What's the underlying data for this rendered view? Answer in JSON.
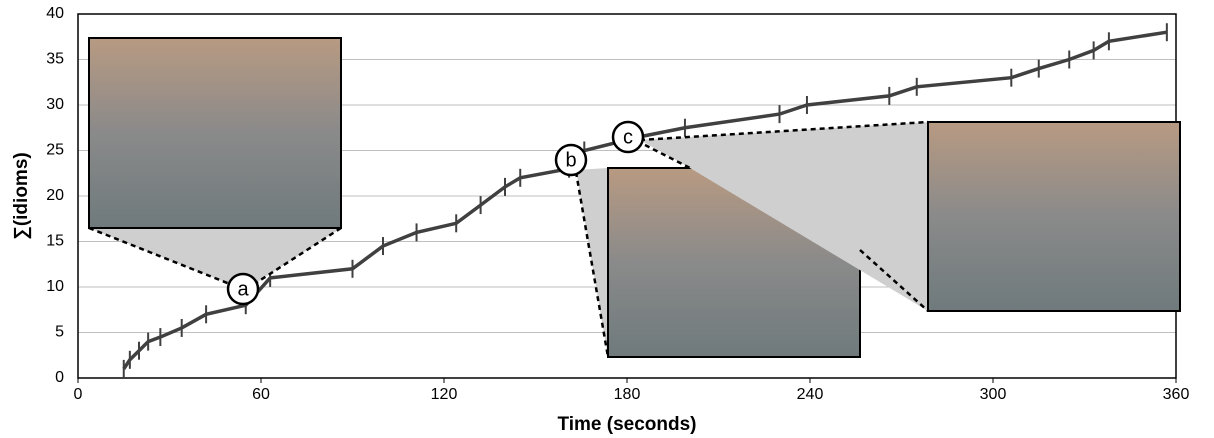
{
  "chart_data": {
    "type": "line",
    "xlabel": "Time (seconds)",
    "ylabel": "∑(idioms)",
    "x": [
      15,
      17,
      20,
      23,
      27,
      34,
      42,
      55,
      63,
      90,
      100,
      111,
      124,
      132,
      140,
      145,
      161,
      166,
      184,
      199,
      230,
      239,
      266,
      275,
      306,
      315,
      325,
      333,
      338,
      357
    ],
    "series": [
      {
        "name": "idioms",
        "color": "#404040",
        "values": [
          1,
          2,
          3,
          4,
          4.5,
          5.5,
          7,
          8,
          11,
          12,
          14.5,
          16,
          17,
          19,
          21,
          22,
          23,
          25,
          26.5,
          27.5,
          29,
          30,
          31,
          32,
          33,
          34,
          35,
          36,
          37,
          38
        ]
      }
    ],
    "xlim": [
      0,
      360
    ],
    "xticks": [
      0,
      60,
      120,
      180,
      240,
      300,
      360
    ],
    "ylim": [
      0,
      40
    ],
    "yticks": [
      0,
      5,
      10,
      15,
      20,
      25,
      30,
      35,
      40
    ],
    "grid": true,
    "annotations": [
      "a",
      "b",
      "c"
    ]
  }
}
